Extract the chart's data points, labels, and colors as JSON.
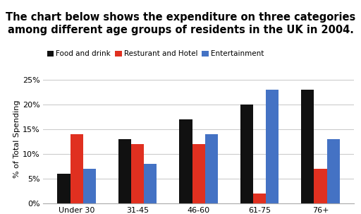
{
  "title": "The chart below shows the expenditure on three categories\namong different age groups of residents in the UK in 2004.",
  "categories": [
    "Under 30",
    "31-45",
    "46-60",
    "61-75",
    "76+"
  ],
  "series": [
    {
      "name": "Food and drink",
      "color": "#111111",
      "values": [
        6,
        13,
        17,
        20,
        23
      ]
    },
    {
      "name": "Resturant and Hotel",
      "color": "#e03020",
      "values": [
        14,
        12,
        12,
        2,
        7
      ]
    },
    {
      "name": "Entertainment",
      "color": "#4472c4",
      "values": [
        7,
        8,
        14,
        23,
        13
      ]
    }
  ],
  "ylabel": "% of Total Spending",
  "ylim": [
    0,
    26
  ],
  "yticks": [
    0,
    5,
    10,
    15,
    20,
    25
  ],
  "ytick_labels": [
    "0%",
    "5%",
    "10%",
    "15%",
    "20%",
    "25%"
  ],
  "background_color": "#ffffff",
  "title_fontsize": 10.5,
  "legend_fontsize": 7.5,
  "axis_fontsize": 8,
  "tick_fontsize": 8,
  "bar_width": 0.21,
  "grid_color": "#cccccc"
}
